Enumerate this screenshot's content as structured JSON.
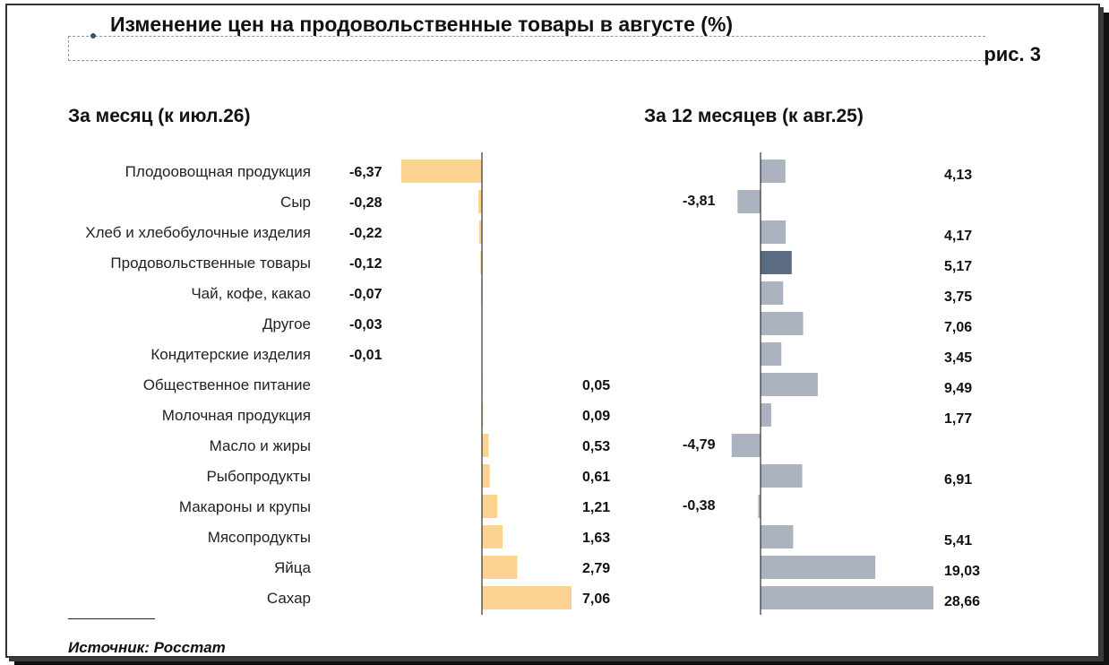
{
  "title": "Изменение цен на продовольственные товары в августе (%)",
  "figure_label": "рис. 3",
  "source": "Источник: Росстат",
  "colors": {
    "left_bar": "#fcd390",
    "right_bar": "#aab3bf",
    "right_highlight": "#5a6b82",
    "axis": "#333333"
  },
  "chart_data": [
    {
      "type": "bar",
      "orientation": "horizontal",
      "title": "За месяц (к июл.26)",
      "categories": [
        "Плодоовощная продукция",
        "Сыр",
        "Хлеб и хлебобулочные изделия",
        "Продовольственные товары",
        "Чай, кофе, какао",
        "Другое",
        "Кондитерские изделия",
        "Общественное питание",
        "Молочная продукция",
        "Масло и жиры",
        "Рыбопродукты",
        "Макароны и крупы",
        "Мясопродукты",
        "Яйца",
        "Сахар"
      ],
      "values": [
        -6.37,
        -0.28,
        -0.22,
        -0.12,
        -0.07,
        -0.03,
        -0.01,
        0.05,
        0.09,
        0.53,
        0.61,
        1.21,
        1.63,
        2.79,
        7.06
      ],
      "labels": [
        "-6,37",
        "-0,28",
        "-0,22",
        "-0,12",
        "-0,07",
        "-0,03",
        "-0,01",
        "0,05",
        "0,09",
        "0,53",
        "0,61",
        "1,21",
        "1,63",
        "2,79",
        "7,06"
      ],
      "xlim": [
        -7.1,
        7.06
      ]
    },
    {
      "type": "bar",
      "orientation": "horizontal",
      "title": "За 12 месяцев (к авг.25)",
      "categories": [
        "Плодоовощная продукция",
        "Сыр",
        "Хлеб и хлебобулочные изделия",
        "Продовольственные товары",
        "Чай, кофе, какао",
        "Другое",
        "Кондитерские изделия",
        "Общественное питание",
        "Молочная продукция",
        "Масло и жиры",
        "Рыбопродукты",
        "Макароны и крупы",
        "Мясопродукты",
        "Яйца",
        "Сахар"
      ],
      "values": [
        4.13,
        -3.81,
        4.17,
        5.17,
        3.75,
        7.06,
        3.45,
        9.49,
        1.77,
        -4.79,
        6.91,
        -0.38,
        5.41,
        19.03,
        28.66
      ],
      "labels": [
        "4,13",
        "-3,81",
        "4,17",
        "5,17",
        "3,75",
        "7,06",
        "3,45",
        "9,49",
        "1,77",
        "-4,79",
        "6,91",
        "-0,38",
        "5,41",
        "19,03",
        "28,66"
      ],
      "highlight": "Продовольственные товары",
      "xlim": [
        -4.79,
        28.66
      ]
    }
  ]
}
